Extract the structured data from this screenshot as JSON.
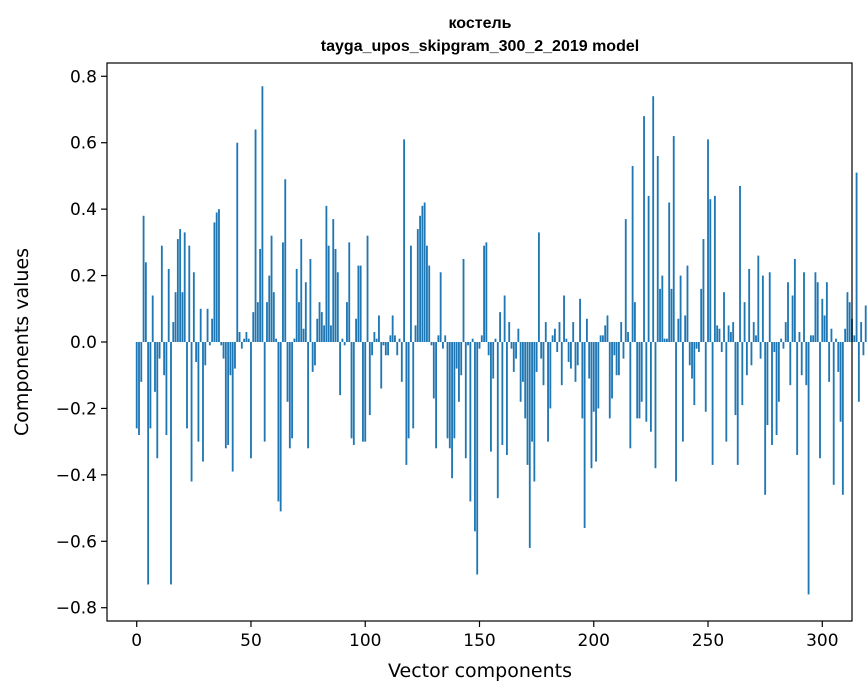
{
  "chart_data": {
    "type": "bar",
    "title": "костель",
    "subtitle": "tayga_upos_skipgram_300_2_2019 model",
    "xlabel": "Vector components",
    "ylabel": "Components values",
    "xlim": [
      -13,
      313
    ],
    "ylim": [
      -0.84,
      0.84
    ],
    "x_ticks": [
      0,
      50,
      100,
      150,
      200,
      250,
      300
    ],
    "x_tick_labels": [
      "0",
      "50",
      "100",
      "150",
      "200",
      "250",
      "300"
    ],
    "y_ticks": [
      -0.8,
      -0.6,
      -0.4,
      -0.2,
      0.0,
      0.2,
      0.4,
      0.6,
      0.8
    ],
    "y_tick_labels": [
      "−0.8",
      "−0.6",
      "−0.4",
      "−0.2",
      "0.0",
      "0.2",
      "0.4",
      "0.6",
      "0.8"
    ],
    "grid": false,
    "bar_color": "#1f77b4",
    "values": [
      -0.26,
      -0.28,
      -0.12,
      0.38,
      0.24,
      -0.73,
      -0.26,
      0.14,
      -0.15,
      -0.35,
      -0.05,
      0.29,
      -0.1,
      -0.28,
      0.22,
      -0.73,
      0.06,
      0.15,
      0.31,
      0.34,
      0.15,
      0.33,
      -0.26,
      0.29,
      -0.42,
      0.21,
      -0.06,
      -0.3,
      0.1,
      -0.36,
      -0.07,
      0.1,
      -0.01,
      0.07,
      0.36,
      0.39,
      0.4,
      -0.01,
      -0.05,
      -0.32,
      -0.31,
      -0.1,
      -0.39,
      -0.08,
      0.6,
      0.03,
      -0.02,
      0.01,
      0.03,
      0.01,
      -0.35,
      0.09,
      0.64,
      0.12,
      0.28,
      0.77,
      -0.3,
      0.12,
      0.2,
      0.32,
      0.15,
      0.01,
      -0.48,
      -0.51,
      0.3,
      0.49,
      -0.18,
      -0.32,
      -0.29,
      0.01,
      0.22,
      0.12,
      0.31,
      0.04,
      0.18,
      -0.32,
      0.25,
      -0.09,
      -0.07,
      0.07,
      0.12,
      0.09,
      0.05,
      0.41,
      0.29,
      0.05,
      0.37,
      0.28,
      0.21,
      -0.16,
      0.01,
      -0.01,
      0.12,
      0.3,
      -0.29,
      -0.31,
      0.07,
      0.23,
      0.23,
      -0.3,
      -0.3,
      0.32,
      -0.22,
      -0.04,
      0.03,
      0.01,
      0.08,
      -0.14,
      -0.01,
      -0.04,
      -0.04,
      0.02,
      0.08,
      0.02,
      -0.04,
      0.01,
      -0.12,
      0.61,
      -0.37,
      -0.29,
      0.29,
      -0.26,
      0.05,
      0.34,
      0.38,
      0.41,
      0.42,
      0.29,
      0.23,
      -0.01,
      -0.17,
      -0.32,
      0.02,
      0.21,
      -0.02,
      0.02,
      -0.29,
      -0.32,
      -0.41,
      -0.29,
      -0.08,
      -0.18,
      -0.1,
      0.25,
      -0.35,
      -0.01,
      -0.48,
      0.01,
      -0.57,
      -0.7,
      -0.02,
      0.02,
      0.29,
      0.3,
      -0.04,
      -0.33,
      -0.11,
      0.01,
      -0.47,
      0.09,
      -0.31,
      0.14,
      -0.34,
      0.06,
      -0.02,
      -0.09,
      -0.05,
      0.04,
      -0.18,
      -0.12,
      -0.23,
      -0.37,
      -0.62,
      -0.3,
      -0.42,
      -0.09,
      0.33,
      -0.05,
      -0.13,
      0.06,
      -0.3,
      -0.2,
      0.02,
      0.04,
      -0.03,
      0.06,
      -0.13,
      0.14,
      0.01,
      -0.06,
      -0.08,
      0.06,
      -0.12,
      -0.07,
      0.13,
      -0.23,
      -0.56,
      0.07,
      -0.11,
      -0.38,
      -0.21,
      -0.36,
      -0.2,
      0.02,
      0.02,
      0.05,
      0.08,
      -0.23,
      -0.17,
      -0.04,
      -0.1,
      -0.1,
      0.06,
      -0.05,
      0.37,
      0.03,
      -0.32,
      0.53,
      0.12,
      -0.23,
      -0.23,
      -0.18,
      0.68,
      -0.24,
      0.44,
      -0.27,
      0.74,
      -0.38,
      0.56,
      0.16,
      0.2,
      0.01,
      0.01,
      0.42,
      0.16,
      0.62,
      -0.42,
      0.07,
      0.2,
      -0.3,
      0.08,
      0.23,
      -0.07,
      -0.11,
      -0.19,
      -0.02,
      -0.03,
      0.16,
      0.31,
      -0.21,
      0.61,
      0.43,
      -0.37,
      0.44,
      0.05,
      0.04,
      -0.03,
      0.15,
      -0.3,
      0.05,
      0.03,
      0.06,
      -0.22,
      -0.37,
      0.47,
      -0.19,
      0.12,
      -0.1,
      0.22,
      -0.07,
      0.06,
      0.02,
      0.26,
      -0.05,
      0.2,
      -0.46,
      -0.25,
      0.21,
      -0.31,
      -0.03,
      -0.28,
      -0.18,
      0.01,
      -0.02,
      0.06,
      0.18,
      -0.13,
      0.14,
      0.25,
      -0.34,
      0.03,
      -0.1,
      0.21,
      -0.13,
      -0.76,
      0.02,
      0.02,
      0.21,
      0.18,
      -0.35,
      0.13,
      0.08,
      0.18,
      -0.12,
      0.04,
      -0.43,
      0.01,
      -0.09,
      -0.24,
      -0.46,
      0.04,
      0.15,
      0.12,
      0.07,
      0.02,
      0.51,
      -0.18,
      0.06,
      -0.04,
      0.11
    ]
  }
}
